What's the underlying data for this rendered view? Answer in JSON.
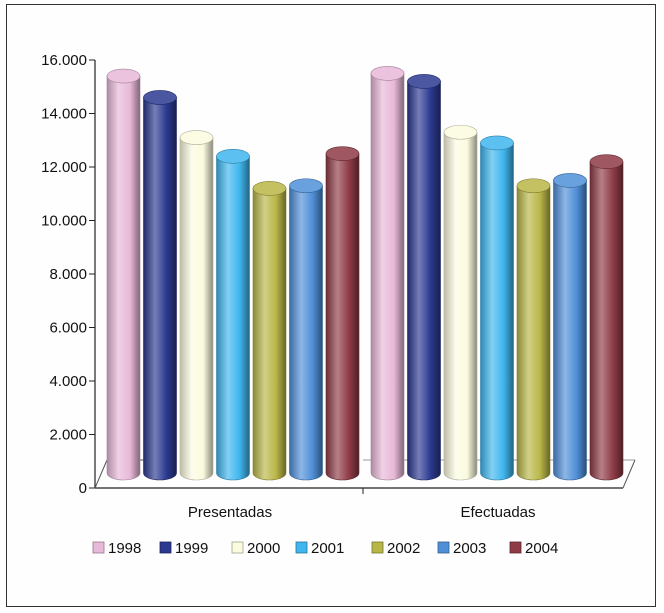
{
  "chart_data": {
    "type": "bar",
    "style": "3d-cylinder",
    "categories": [
      "Presentadas",
      "Efectuadas"
    ],
    "series": [
      {
        "name": "1998",
        "values": [
          15100,
          15200
        ],
        "color": "#e8b8d8"
      },
      {
        "name": "1999",
        "values": [
          14300,
          14900
        ],
        "color": "#2b3990"
      },
      {
        "name": "2000",
        "values": [
          12800,
          13000
        ],
        "color": "#fbfbe0"
      },
      {
        "name": "2001",
        "values": [
          12100,
          12600
        ],
        "color": "#3fb6ee"
      },
      {
        "name": "2002",
        "values": [
          10900,
          11000
        ],
        "color": "#b9b648"
      },
      {
        "name": "2003",
        "values": [
          11000,
          11200
        ],
        "color": "#4f8fd8"
      },
      {
        "name": "2004",
        "values": [
          12200,
          11900
        ],
        "color": "#8e3b46"
      }
    ],
    "yticks": [
      "0",
      "2.000",
      "4.000",
      "6.000",
      "8.000",
      "10.000",
      "12.000",
      "14.000",
      "16.000"
    ],
    "ylim": [
      0,
      16000
    ],
    "grid": false,
    "legend": "bottom"
  }
}
